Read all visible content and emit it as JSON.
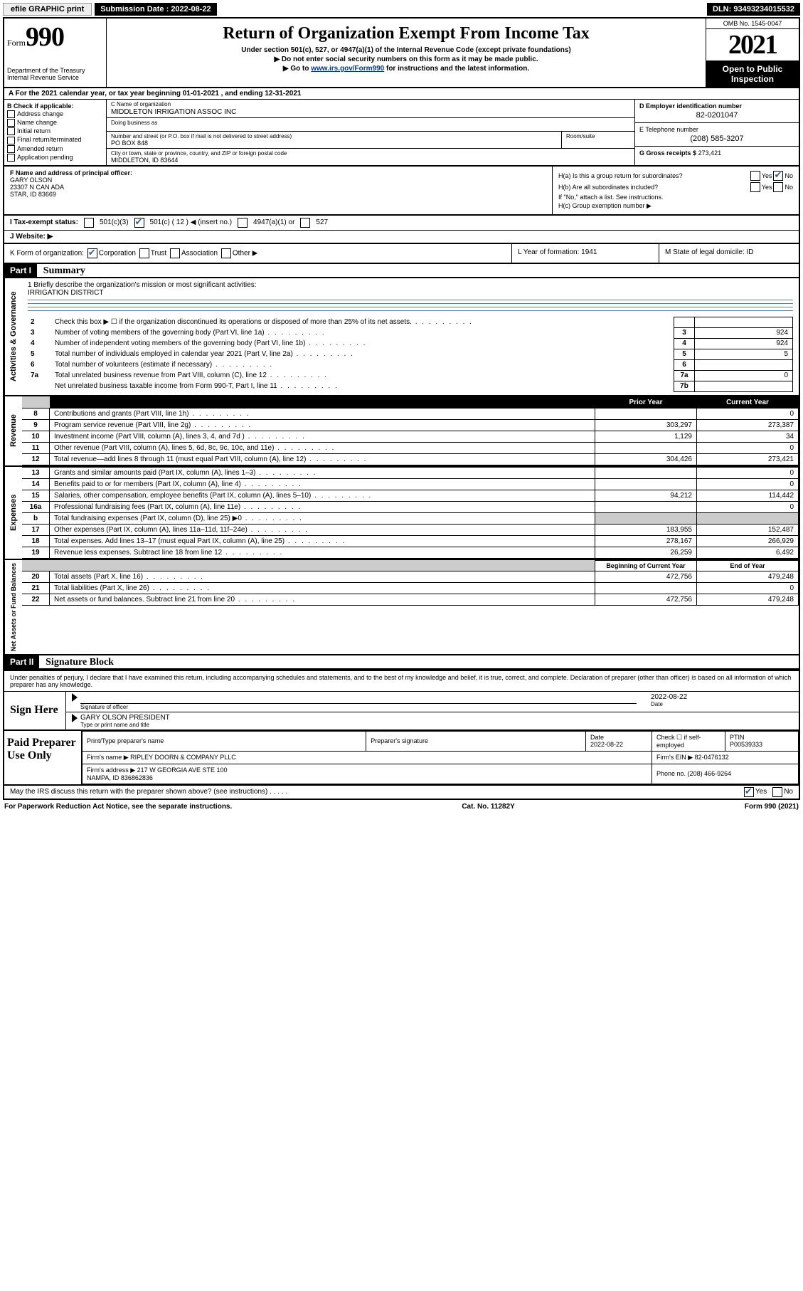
{
  "topbar": {
    "print": "efile GRAPHIC print",
    "submission_label": "Submission Date : 2022-08-22",
    "dln": "DLN: 93493234015532"
  },
  "header": {
    "form_prefix": "Form",
    "form_number": "990",
    "dept": "Department of the Treasury\nInternal Revenue Service",
    "title": "Return of Organization Exempt From Income Tax",
    "sub1": "Under section 501(c), 527, or 4947(a)(1) of the Internal Revenue Code (except private foundations)",
    "sub2": "Do not enter social security numbers on this form as it may be made public.",
    "sub3_pre": "Go to ",
    "sub3_link": "www.irs.gov/Form990",
    "sub3_post": " for instructions and the latest information.",
    "omb": "OMB No. 1545-0047",
    "year": "2021",
    "open": "Open to Public Inspection"
  },
  "rowA": "A For the 2021 calendar year, or tax year beginning 01-01-2021   , and ending 12-31-2021",
  "colB": {
    "title": "B Check if applicable:",
    "opts": [
      "Address change",
      "Name change",
      "Initial return",
      "Final return/terminated",
      "Amended return",
      "Application pending"
    ]
  },
  "colC": {
    "name_lbl": "C Name of organization",
    "name": "MIDDLETON IRRIGATION ASSOC INC",
    "dba_lbl": "Doing business as",
    "dba": "",
    "street_lbl": "Number and street (or P.O. box if mail is not delivered to street address)",
    "street": "PO BOX 848",
    "room_lbl": "Room/suite",
    "city_lbl": "City or town, state or province, country, and ZIP or foreign postal code",
    "city": "MIDDLETON, ID  83644"
  },
  "colD": {
    "ein_lbl": "D Employer identification number",
    "ein": "82-0201047",
    "phone_lbl": "E Telephone number",
    "phone": "(208) 585-3207",
    "gross_lbl": "G Gross receipts $",
    "gross": "273,421"
  },
  "colF": {
    "lbl": "F Name and address of principal officer:",
    "name": "GARY OLSON",
    "addr1": "23307 N CAN ADA",
    "addr2": "STAR, ID  83669"
  },
  "colH": {
    "ha": "H(a)  Is this a group return for subordinates?",
    "hb": "H(b)  Are all subordinates included?",
    "hb_note": "If \"No,\" attach a list. See instructions.",
    "hc": "H(c)  Group exemption number ▶"
  },
  "rowI": {
    "lbl": "I    Tax-exempt status:",
    "o1": "501(c)(3)",
    "o2": "501(c) ( 12 ) ◀ (insert no.)",
    "o3": "4947(a)(1) or",
    "o4": "527"
  },
  "rowJ": "J    Website: ▶",
  "rowK": "K Form of organization:",
  "rowK_opts": [
    "Corporation",
    "Trust",
    "Association",
    "Other ▶"
  ],
  "rowL": "L Year of formation: 1941",
  "rowM": "M State of legal domicile: ID",
  "partI": {
    "hdr": "Part I",
    "title": "Summary"
  },
  "mission": {
    "q": "1   Briefly describe the organization's mission or most significant activities:",
    "a": "IRRIGATION DISTRICT"
  },
  "gov_rows": [
    {
      "n": "2",
      "d": "Check this box ▶ ☐  if the organization discontinued its operations or disposed of more than 25% of its net assets.",
      "box": "",
      "amt": ""
    },
    {
      "n": "3",
      "d": "Number of voting members of the governing body (Part VI, line 1a)",
      "box": "3",
      "amt": "924"
    },
    {
      "n": "4",
      "d": "Number of independent voting members of the governing body (Part VI, line 1b)",
      "box": "4",
      "amt": "924"
    },
    {
      "n": "5",
      "d": "Total number of individuals employed in calendar year 2021 (Part V, line 2a)",
      "box": "5",
      "amt": "5"
    },
    {
      "n": "6",
      "d": "Total number of volunteers (estimate if necessary)",
      "box": "6",
      "amt": ""
    },
    {
      "n": "7a",
      "d": "Total unrelated business revenue from Part VIII, column (C), line 12",
      "box": "7a",
      "amt": "0"
    },
    {
      "n": "",
      "d": "Net unrelated business taxable income from Form 990-T, Part I, line 11",
      "box": "7b",
      "amt": ""
    }
  ],
  "col_headers": {
    "prior": "Prior Year",
    "current": "Current Year"
  },
  "rev_rows": [
    {
      "n": "8",
      "d": "Contributions and grants (Part VIII, line 1h)",
      "p": "",
      "c": "0"
    },
    {
      "n": "9",
      "d": "Program service revenue (Part VIII, line 2g)",
      "p": "303,297",
      "c": "273,387"
    },
    {
      "n": "10",
      "d": "Investment income (Part VIII, column (A), lines 3, 4, and 7d )",
      "p": "1,129",
      "c": "34"
    },
    {
      "n": "11",
      "d": "Other revenue (Part VIII, column (A), lines 5, 6d, 8c, 9c, 10c, and 11e)",
      "p": "",
      "c": "0"
    },
    {
      "n": "12",
      "d": "Total revenue—add lines 8 through 11 (must equal Part VIII, column (A), line 12)",
      "p": "304,426",
      "c": "273,421"
    }
  ],
  "exp_rows": [
    {
      "n": "13",
      "d": "Grants and similar amounts paid (Part IX, column (A), lines 1–3)",
      "p": "",
      "c": "0"
    },
    {
      "n": "14",
      "d": "Benefits paid to or for members (Part IX, column (A), line 4)",
      "p": "",
      "c": "0"
    },
    {
      "n": "15",
      "d": "Salaries, other compensation, employee benefits (Part IX, column (A), lines 5–10)",
      "p": "94,212",
      "c": "114,442"
    },
    {
      "n": "16a",
      "d": "Professional fundraising fees (Part IX, column (A), line 11e)",
      "p": "",
      "c": "0"
    },
    {
      "n": "b",
      "d": "Total fundraising expenses (Part IX, column (D), line 25) ▶0",
      "p": "GRAY",
      "c": "GRAY"
    },
    {
      "n": "17",
      "d": "Other expenses (Part IX, column (A), lines 11a–11d, 11f–24e)",
      "p": "183,955",
      "c": "152,487"
    },
    {
      "n": "18",
      "d": "Total expenses. Add lines 13–17 (must equal Part IX, column (A), line 25)",
      "p": "278,167",
      "c": "266,929"
    },
    {
      "n": "19",
      "d": "Revenue less expenses. Subtract line 18 from line 12",
      "p": "26,259",
      "c": "6,492"
    }
  ],
  "na_headers": {
    "beg": "Beginning of Current Year",
    "end": "End of Year"
  },
  "na_rows": [
    {
      "n": "20",
      "d": "Total assets (Part X, line 16)",
      "p": "472,756",
      "c": "479,248"
    },
    {
      "n": "21",
      "d": "Total liabilities (Part X, line 26)",
      "p": "",
      "c": "0"
    },
    {
      "n": "22",
      "d": "Net assets or fund balances. Subtract line 21 from line 20",
      "p": "472,756",
      "c": "479,248"
    }
  ],
  "partII": {
    "hdr": "Part II",
    "title": "Signature Block"
  },
  "sig": {
    "intro": "Under penalties of perjury, I declare that I have examined this return, including accompanying schedules and statements, and to the best of my knowledge and belief, it is true, correct, and complete. Declaration of preparer (other than officer) is based on all information of which preparer has any knowledge.",
    "left": "Sign Here",
    "sig_lbl": "Signature of officer",
    "date": "2022-08-22",
    "date_lbl": "Date",
    "name": "GARY OLSON  PRESIDENT",
    "name_lbl": "Type or print name and title"
  },
  "prep": {
    "left": "Paid Preparer Use Only",
    "h1": "Print/Type preparer's name",
    "h2": "Preparer's signature",
    "h3": "Date",
    "h4": "Check ☐ if self-employed",
    "h5": "PTIN",
    "date": "2022-08-22",
    "ptin": "P00539333",
    "firm_lbl": "Firm's name    ▶",
    "firm": "RIPLEY DOORN & COMPANY PLLC",
    "ein_lbl": "Firm's EIN ▶",
    "ein": "82-0476132",
    "addr_lbl": "Firm's address ▶",
    "addr": "217 W GEORGIA AVE STE 100\nNAMPA, ID  836862836",
    "ph_lbl": "Phone no.",
    "ph": "(208) 466-9264"
  },
  "footer": {
    "q": "May the IRS discuss this return with the preparer shown above? (see instructions)",
    "yes": "Yes",
    "no": "No"
  },
  "bottom": {
    "l": "For Paperwork Reduction Act Notice, see the separate instructions.",
    "m": "Cat. No. 11282Y",
    "r": "Form 990 (2021)"
  }
}
